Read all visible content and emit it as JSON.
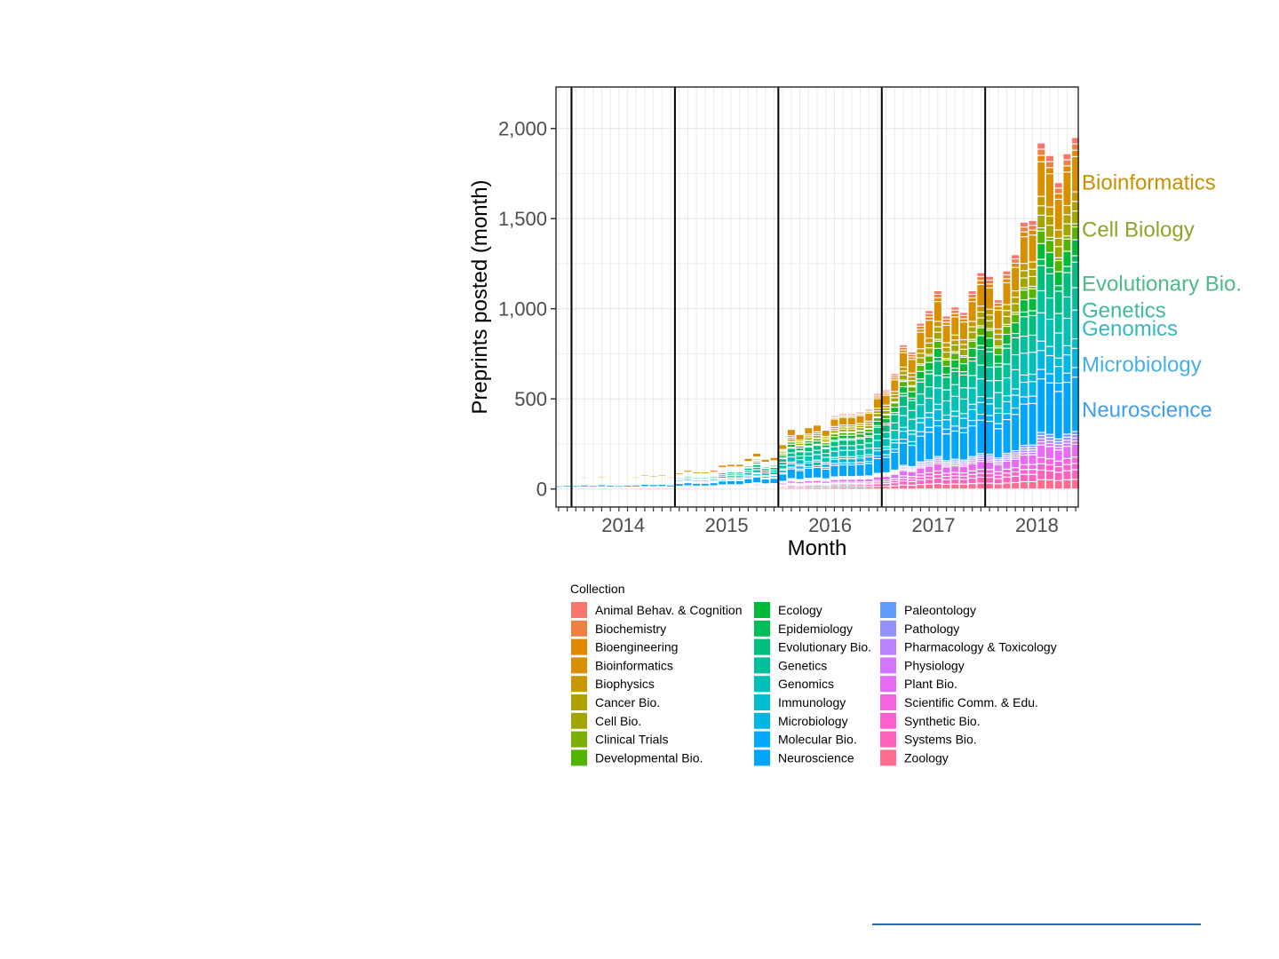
{
  "chart_data": {
    "type": "bar",
    "stacked": true,
    "xlabel": "Month",
    "ylabel": "Preprints posted (month)",
    "x_tick_labels": [
      "2014",
      "2015",
      "2016",
      "2017",
      "2018"
    ],
    "y_ticks": [
      0,
      500,
      1000,
      1500,
      2000
    ],
    "y_tick_labels": [
      "0",
      "500",
      "1,000",
      "1,500",
      "2,000"
    ],
    "ylim": [
      -100,
      2230
    ],
    "x_range_months": [
      "2013-11",
      "2018-11"
    ],
    "grid": true,
    "year_separators": [
      "2014-01",
      "2015-01",
      "2016-01",
      "2017-01",
      "2018-01"
    ],
    "legend": {
      "title": "Collection",
      "position": "bottom",
      "entries": [
        {
          "name": "Animal Behav. & Cognition",
          "color": "#F8766D"
        },
        {
          "name": "Biochemistry",
          "color": "#EE8043"
        },
        {
          "name": "Bioengineering",
          "color": "#E38900"
        },
        {
          "name": "Bioinformatics",
          "color": "#D89000"
        },
        {
          "name": "Biophysics",
          "color": "#C99800"
        },
        {
          "name": "Cancer Bio.",
          "color": "#B0A000"
        },
        {
          "name": "Cell Bio.",
          "color": "#A3A500"
        },
        {
          "name": "Clinical Trials",
          "color": "#7CAE00"
        },
        {
          "name": "Developmental Bio.",
          "color": "#53B400"
        },
        {
          "name": "Ecology",
          "color": "#00BA38"
        },
        {
          "name": "Epidemiology",
          "color": "#00BC59"
        },
        {
          "name": "Evolutionary Bio.",
          "color": "#00BF7D"
        },
        {
          "name": "Genetics",
          "color": "#00C19C"
        },
        {
          "name": "Genomics",
          "color": "#00C0B8"
        },
        {
          "name": "Immunology",
          "color": "#00BDD0"
        },
        {
          "name": "Microbiology",
          "color": "#00B6E3"
        },
        {
          "name": "Molecular Bio.",
          "color": "#00ABFD"
        },
        {
          "name": "Neuroscience",
          "color": "#00A5FF"
        },
        {
          "name": "Paleontology",
          "color": "#619CFF"
        },
        {
          "name": "Pathology",
          "color": "#9590FF"
        },
        {
          "name": "Pharmacology & Toxicology",
          "color": "#B983FF"
        },
        {
          "name": "Physiology",
          "color": "#D575FE"
        },
        {
          "name": "Plant Bio.",
          "color": "#E76BF3"
        },
        {
          "name": "Scientific Comm. & Edu.",
          "color": "#F564E3"
        },
        {
          "name": "Synthetic Bio.",
          "color": "#FD61D1"
        },
        {
          "name": "Systems Bio.",
          "color": "#FF62BC"
        },
        {
          "name": "Zoology",
          "color": "#FF6C91"
        }
      ]
    },
    "annotations": [
      {
        "text": "Bioinformatics",
        "y": 1700,
        "color": "#C99000"
      },
      {
        "text": "Cell Biology",
        "y": 1440,
        "color": "#8FA32A"
      },
      {
        "text": "Evolutionary Bio.",
        "y": 1140,
        "color": "#4CBA8A"
      },
      {
        "text": "Genetics",
        "y": 990,
        "color": "#3DBB9D"
      },
      {
        "text": "Genomics",
        "y": 890,
        "color": "#38B8C0"
      },
      {
        "text": "Microbiology",
        "y": 690,
        "color": "#45B0E8"
      },
      {
        "text": "Neuroscience",
        "y": 440,
        "color": "#3D9EF0"
      }
    ],
    "monthly_totals": {
      "months": [
        "2013-11",
        "2013-12",
        "2014-01",
        "2014-02",
        "2014-03",
        "2014-04",
        "2014-05",
        "2014-06",
        "2014-07",
        "2014-08",
        "2014-09",
        "2014-10",
        "2014-11",
        "2014-12",
        "2015-01",
        "2015-02",
        "2015-03",
        "2015-04",
        "2015-05",
        "2015-06",
        "2015-07",
        "2015-08",
        "2015-09",
        "2015-10",
        "2015-11",
        "2015-12",
        "2016-01",
        "2016-02",
        "2016-03",
        "2016-04",
        "2016-05",
        "2016-06",
        "2016-07",
        "2016-08",
        "2016-09",
        "2016-10",
        "2016-11",
        "2016-12",
        "2017-01",
        "2017-02",
        "2017-03",
        "2017-04",
        "2017-05",
        "2017-06",
        "2017-07",
        "2017-08",
        "2017-09",
        "2017-10",
        "2017-11",
        "2017-12",
        "2018-01",
        "2018-02",
        "2018-03",
        "2018-04",
        "2018-05",
        "2018-06",
        "2018-07",
        "2018-08",
        "2018-09",
        "2018-10",
        "2018-11"
      ],
      "values": [
        55,
        62,
        58,
        70,
        60,
        75,
        65,
        58,
        66,
        70,
        82,
        78,
        82,
        70,
        95,
        110,
        100,
        100,
        110,
        140,
        145,
        145,
        180,
        210,
        175,
        185,
        260,
        350,
        320,
        360,
        375,
        345,
        410,
        420,
        420,
        430,
        445,
        530,
        550,
        640,
        800,
        760,
        920,
        990,
        1100,
        960,
        1010,
        980,
        1100,
        1200,
        1180,
        1050,
        1210,
        1300,
        1480,
        1490,
        1920,
        1850,
        1700,
        1860,
        1950
      ]
    },
    "segments": [
      {
        "name": "Zoology",
        "share": 0.03
      },
      {
        "name": "Systems Bio.",
        "share": 0.03
      },
      {
        "name": "Synthetic Bio.",
        "share": 0.02
      },
      {
        "name": "Scientific Comm. & Edu.",
        "share": 0.02
      },
      {
        "name": "Plant Bio.",
        "share": 0.04
      },
      {
        "name": "Physiology",
        "share": 0.01
      },
      {
        "name": "Pharmacology & Toxicology",
        "share": 0.01
      },
      {
        "name": "Pathology",
        "share": 0.01
      },
      {
        "name": "Paleontology",
        "share": 0.01
      },
      {
        "name": "Neuroscience",
        "share": 0.17
      },
      {
        "name": "Molecular Bio.",
        "share": 0.03
      },
      {
        "name": "Microbiology",
        "share": 0.06
      },
      {
        "name": "Immunology",
        "share": 0.03
      },
      {
        "name": "Genomics",
        "share": 0.09
      },
      {
        "name": "Genetics",
        "share": 0.07
      },
      {
        "name": "Evolutionary Bio.",
        "share": 0.08
      },
      {
        "name": "Epidemiology",
        "share": 0.02
      },
      {
        "name": "Ecology",
        "share": 0.05
      },
      {
        "name": "Developmental Bio.",
        "share": 0.04
      },
      {
        "name": "Clinical Trials",
        "share": 0.01
      },
      {
        "name": "Cell Bio.",
        "share": 0.04
      },
      {
        "name": "Cancer Bio.",
        "share": 0.03
      },
      {
        "name": "Biophysics",
        "share": 0.03
      },
      {
        "name": "Bioinformatics",
        "share": 0.11
      },
      {
        "name": "Bioengineering",
        "share": 0.02
      },
      {
        "name": "Biochemistry",
        "share": 0.02
      },
      {
        "name": "Animal Behav. & Cognition",
        "share": 0.02
      }
    ]
  }
}
